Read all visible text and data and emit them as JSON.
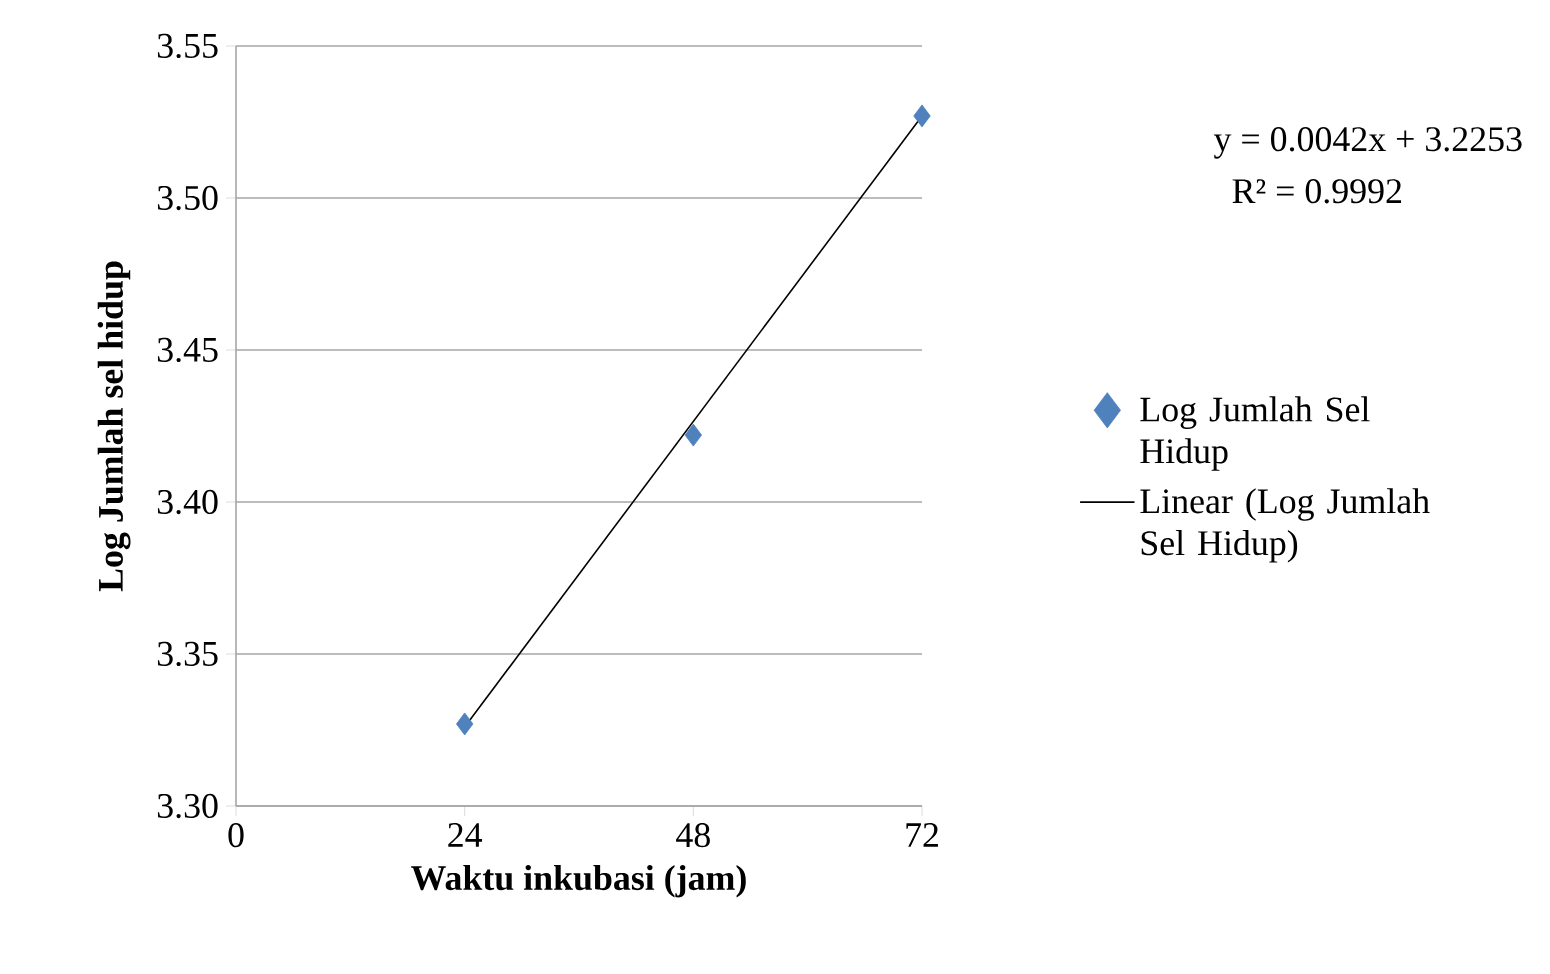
{
  "chart_data": {
    "type": "scatter",
    "xlabel": "Waktu inkubasi (jam)",
    "ylabel": "Log Jumlah sel hidup",
    "x": [
      24,
      48,
      72
    ],
    "series": [
      {
        "name": "Log Jumlah Sel Hidup",
        "color": "#4f81bd",
        "marker": "diamond",
        "values": [
          3.327,
          3.422,
          3.527
        ]
      },
      {
        "name": "Linear (Log Jumlah Sel Hidup)",
        "type": "line",
        "color": "#000000",
        "marker": "none",
        "line_style": "solid",
        "x": [
          24,
          72
        ],
        "values": [
          3.326,
          3.527
        ]
      }
    ],
    "xlim": [
      0,
      72
    ],
    "xticks": [
      0,
      24,
      48,
      72
    ],
    "ylim": [
      3.3,
      3.55
    ],
    "yticks": [
      {
        "value": 3.3,
        "label": "3.30"
      },
      {
        "value": 3.35,
        "label": "3.35"
      },
      {
        "value": 3.4,
        "label": "3.40"
      },
      {
        "value": 3.45,
        "label": "3.45"
      },
      {
        "value": 3.5,
        "label": "3.50"
      },
      {
        "value": 3.55,
        "label": "3.55"
      }
    ],
    "grid": "y",
    "legend": "right",
    "annotations": [
      "y = 0.0042x + 3.2253",
      "R² = 0.9992"
    ]
  }
}
